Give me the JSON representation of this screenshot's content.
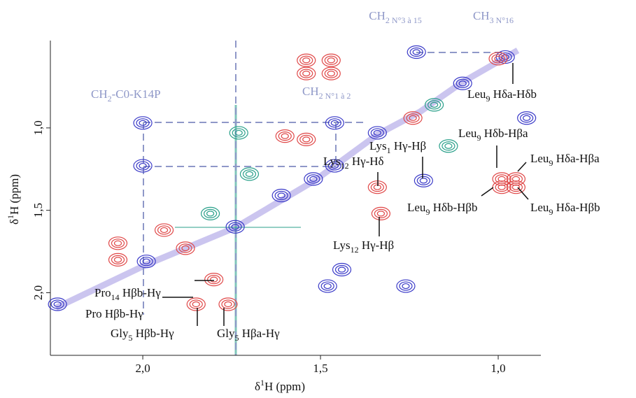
{
  "chart_data": {
    "type": "contour",
    "x_label": {
      "text": "δ",
      "sup": "1",
      "after": "H (ppm)"
    },
    "y_label": {
      "text": "δ",
      "sup": "1",
      "after": "H (ppm)"
    },
    "xlim": [
      2.26,
      0.88
    ],
    "ylim": [
      2.38,
      0.47
    ],
    "xticks": [
      {
        "value": 2.0,
        "label": "2,0"
      },
      {
        "value": 1.5,
        "label": "1,5"
      },
      {
        "value": 1.0,
        "label": "1,0"
      }
    ],
    "yticks": [
      {
        "value": 1.0,
        "label": "1,0"
      },
      {
        "value": 1.5,
        "label": "1,5"
      },
      {
        "value": 2.0,
        "label": "2,0"
      }
    ],
    "series": [
      {
        "color": "#3a3ac8",
        "x": [
          2.0,
          2.0,
          1.46,
          1.46,
          1.23,
          0.92,
          1.21,
          1.48,
          1.26,
          1.44,
          2.24,
          1.99,
          1.61,
          1.52,
          1.1,
          0.98,
          1.74,
          1.34
        ],
        "values": [
          0.97,
          1.23,
          0.97,
          1.23,
          0.54,
          0.94,
          1.32,
          1.96,
          1.96,
          1.86,
          2.07,
          1.81,
          1.41,
          1.31,
          0.73,
          0.57,
          1.6,
          1.03
        ]
      },
      {
        "color": "#e04848",
        "x": [
          1.54,
          1.47,
          1.54,
          1.47,
          0.99,
          0.95,
          0.99,
          0.95,
          1.34,
          1.33,
          1.85,
          1.76,
          1.8,
          2.07,
          2.07,
          1.6,
          1.54,
          1.0,
          1.24,
          1.88,
          1.94
        ],
        "values": [
          0.59,
          0.59,
          0.67,
          0.67,
          1.31,
          1.31,
          1.36,
          1.36,
          1.36,
          1.52,
          2.07,
          2.07,
          1.92,
          1.7,
          1.8,
          1.05,
          1.07,
          0.58,
          0.94,
          1.73,
          1.62
        ]
      },
      {
        "color": "#2aa08a",
        "x": [
          1.73,
          1.7,
          1.18,
          1.81,
          1.14
        ],
        "values": [
          1.03,
          1.28,
          0.86,
          1.52,
          1.11
        ]
      }
    ],
    "annotations": [
      {
        "text": "CH",
        "sub": "2 N°3 à 15",
        "color": "#8f98c8"
      },
      {
        "text": "CH",
        "sub": "3 N°16",
        "color": "#8f98c8"
      },
      {
        "text": "CH",
        "sub": "2",
        "after": "-C0-K14P",
        "color": "#8f98c8"
      },
      {
        "text": "CH",
        "sub": "2 N°1 à 2",
        "color": "#8f98c8"
      },
      {
        "text": "Leu",
        "sub": "9",
        "after": " Hδa-Hδb"
      },
      {
        "text": "Leu",
        "sub": "9",
        "after": " Hδb-Hβa"
      },
      {
        "text": "Leu",
        "sub": "9",
        "after": " Hδa-Hβa"
      },
      {
        "text": "Leu",
        "sub": "9",
        "after": " Hδb-Hβb"
      },
      {
        "text": "Leu",
        "sub": "9",
        "after": " Hδa-Hβb"
      },
      {
        "text": "Lys",
        "sub": "1",
        "after": " Hγ-Hβ"
      },
      {
        "text": "Lys",
        "sub": "12",
        "after": " Hγ-Hδ"
      },
      {
        "text": "Lys",
        "sub": "12",
        "after": " Hγ-Hβ"
      },
      {
        "text": "Pro",
        "sub": "14",
        "after": " Hβb-Hγ"
      },
      {
        "text": "Pro Hβb-Hγ"
      },
      {
        "text": "Gly",
        "sub": "5",
        "after": " Hβb-Hγ"
      },
      {
        "text": "Gly",
        "sub": "5",
        "after": " Hβa-Hγ"
      }
    ]
  }
}
